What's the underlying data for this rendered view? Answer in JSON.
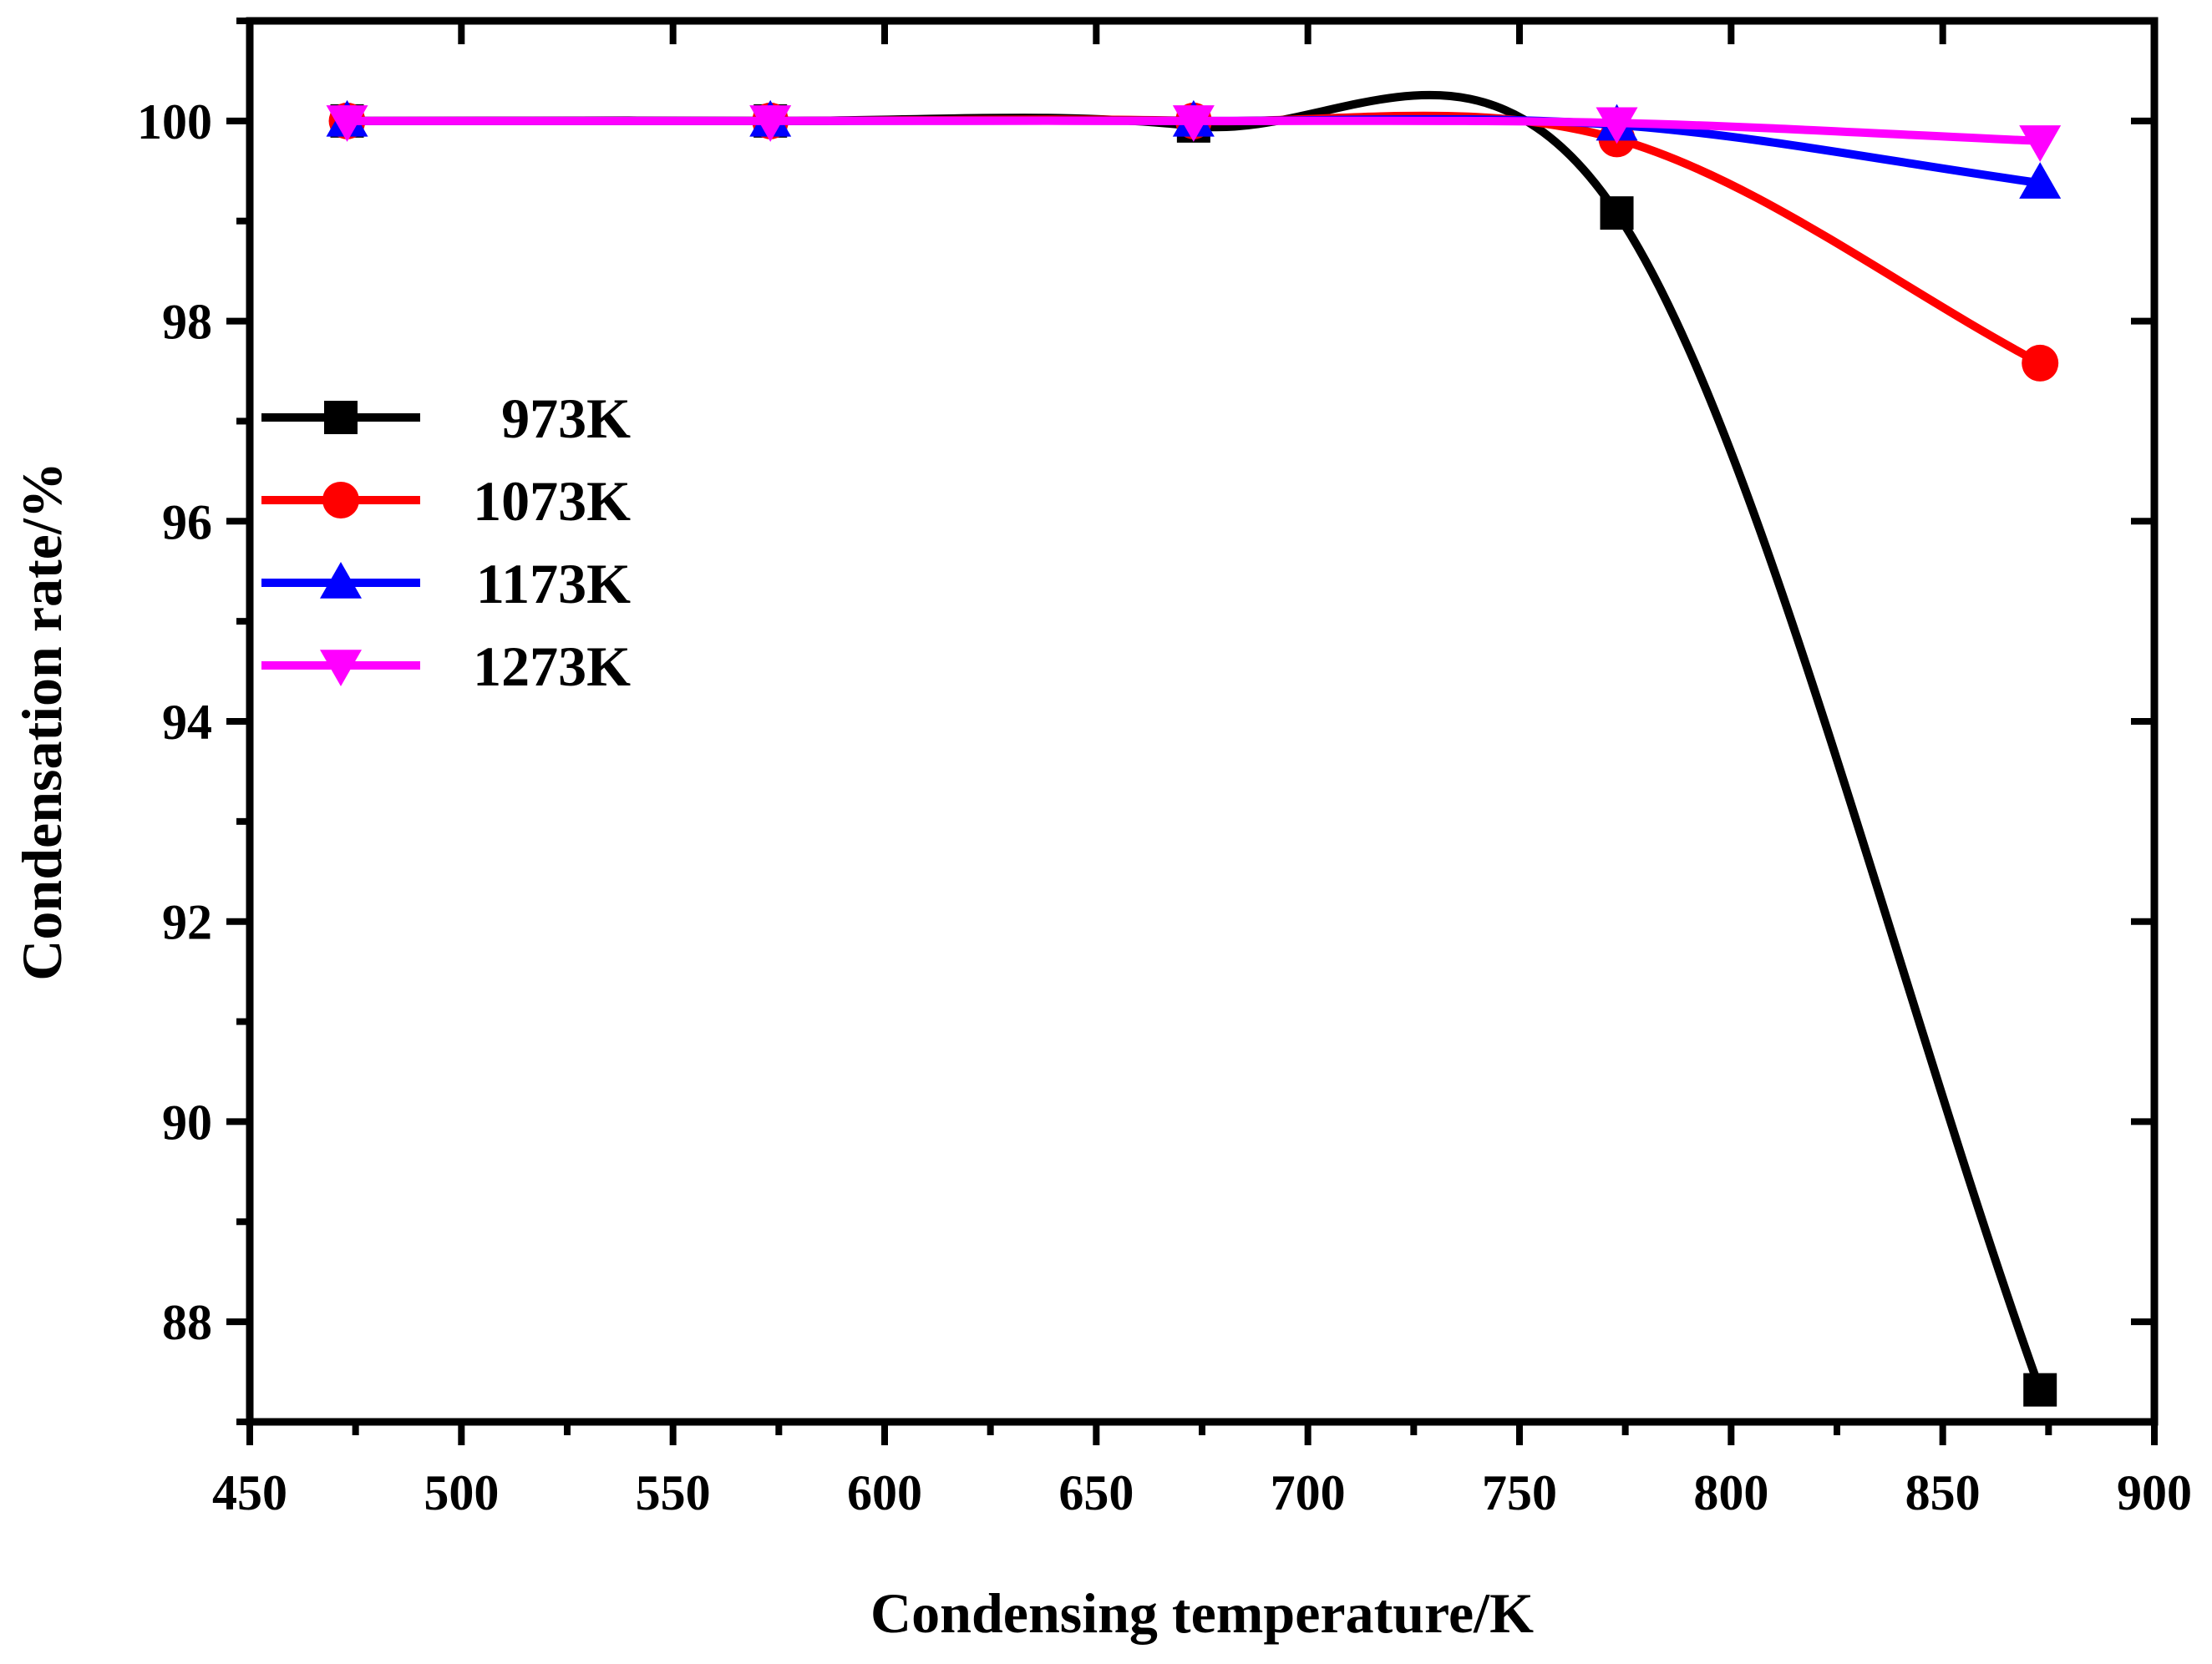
{
  "chart_data": {
    "type": "line",
    "title": "",
    "xlabel": "Condensing temperature/K",
    "ylabel": "Condensation rate/%",
    "xlim": [
      450,
      900
    ],
    "ylim": [
      87,
      101
    ],
    "x_ticks": [
      450,
      500,
      550,
      600,
      650,
      700,
      750,
      800,
      850,
      900
    ],
    "y_ticks": [
      88,
      90,
      92,
      94,
      96,
      98,
      100
    ],
    "grid": false,
    "legend_position": "left-middle",
    "x": [
      473,
      573,
      673,
      773,
      873
    ],
    "series": [
      {
        "name": "973K",
        "color": "#000000",
        "marker": "square",
        "values": [
          100.0,
          100.0,
          99.95,
          99.08,
          87.32
        ]
      },
      {
        "name": "1073K",
        "color": "#ff0000",
        "marker": "circle",
        "values": [
          100.0,
          100.0,
          100.0,
          99.82,
          97.58
        ]
      },
      {
        "name": "1173K",
        "color": "#0000ff",
        "marker": "triangle-up",
        "values": [
          100.0,
          100.0,
          100.0,
          99.96,
          99.38
        ]
      },
      {
        "name": "1273K",
        "color": "#ff00ff",
        "marker": "triangle-down",
        "values": [
          100.0,
          100.0,
          100.0,
          99.98,
          99.8
        ]
      }
    ]
  }
}
